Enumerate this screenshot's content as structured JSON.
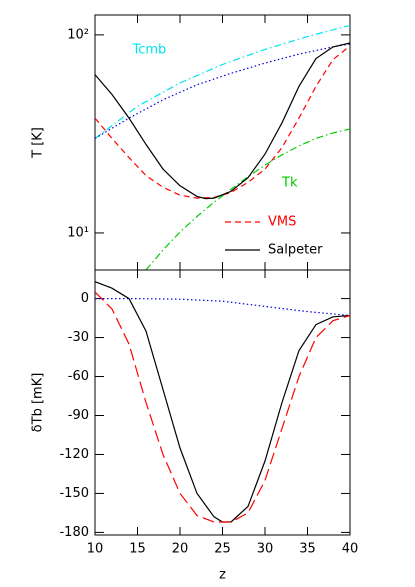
{
  "chart_data": [
    {
      "type": "line",
      "log_y": true,
      "ylabel": "T [K]",
      "xlim": [
        10,
        40
      ],
      "xticks": [
        10,
        15,
        20,
        25,
        30,
        35,
        40
      ],
      "ylim": [
        6.5,
        126
      ],
      "yticks": [
        {
          "value": 10,
          "label": "10¹"
        },
        {
          "value": 100,
          "label": "10²"
        }
      ],
      "legend": "lower right",
      "series": [
        {
          "name": "Tcmb",
          "color": "#00e5ee",
          "dash": "dashdot",
          "legend": false,
          "x": [
            10,
            15,
            20,
            25,
            30,
            35,
            40
          ],
          "values": [
            29.98,
            43.6,
            57.2,
            70.9,
            84.5,
            98.1,
            111.7
          ]
        },
        {
          "color": "#0000dd",
          "dash": "dotted",
          "legend": false,
          "x": [
            10,
            14,
            18,
            22,
            26,
            30,
            34,
            38,
            40
          ],
          "values": [
            30,
            38,
            47,
            56,
            64,
            72,
            80,
            87,
            90
          ]
        },
        {
          "name": "Tk",
          "color": "#00cc00",
          "dash": "dashdot",
          "legend": false,
          "x": [
            16,
            18,
            20,
            22,
            24,
            26,
            28,
            30,
            32,
            34,
            36,
            38,
            40
          ],
          "values": [
            6.5,
            8.2,
            10.1,
            12.1,
            14.3,
            16.6,
            19.2,
            22,
            24.8,
            27.5,
            30,
            32,
            33.5
          ]
        },
        {
          "name": "VMS",
          "color": "#ff0000",
          "dash": "dashed",
          "legend": true,
          "x": [
            10,
            12,
            14,
            16,
            18,
            20,
            22,
            24,
            26,
            28,
            30,
            32,
            34,
            36,
            38,
            40
          ],
          "values": [
            38,
            30,
            24,
            19.5,
            17,
            15.5,
            15,
            15.1,
            16,
            18,
            21,
            27,
            38,
            55,
            75,
            88
          ]
        },
        {
          "name": "Salpeter",
          "color": "#000000",
          "dash": "solid",
          "legend": true,
          "x": [
            10,
            12,
            14,
            16,
            18,
            20,
            22,
            23,
            24,
            26,
            28,
            30,
            32,
            34,
            36,
            38,
            40
          ],
          "values": [
            63,
            50,
            38,
            28,
            21,
            17.3,
            15.3,
            14.9,
            15,
            16.2,
            19,
            25,
            36,
            55,
            76,
            87,
            91
          ]
        }
      ]
    },
    {
      "type": "line",
      "xlabel": "z",
      "ylabel": "δTb [mK]",
      "xlim": [
        10,
        40
      ],
      "xticks": [
        10,
        15,
        20,
        25,
        30,
        35,
        40
      ],
      "ylim": [
        -182,
        22
      ],
      "yticks": [
        0,
        -30,
        -60,
        -90,
        -120,
        -150,
        -180
      ],
      "series": [
        {
          "color": "#0000dd",
          "dash": "dotted",
          "x": [
            10,
            15,
            20,
            25,
            30,
            35,
            40
          ],
          "values": [
            0,
            0,
            -0.5,
            -2,
            -6,
            -10,
            -13
          ]
        },
        {
          "color": "#000000",
          "dash": "solid",
          "x": [
            10,
            12,
            14,
            16,
            18,
            20,
            22,
            24,
            25,
            26,
            28,
            30,
            32,
            34,
            36,
            38,
            40
          ],
          "values": [
            13,
            8,
            0,
            -25,
            -70,
            -115,
            -150,
            -168,
            -172,
            -172,
            -160,
            -125,
            -80,
            -40,
            -20,
            -14,
            -13
          ]
        },
        {
          "color": "#ff0000",
          "dash": "longdash",
          "x": [
            10,
            12,
            14,
            16,
            18,
            20,
            22,
            24,
            26,
            28,
            30,
            32,
            34,
            36,
            38,
            40
          ],
          "values": [
            5,
            -8,
            -35,
            -80,
            -120,
            -150,
            -167,
            -172,
            -172,
            -165,
            -140,
            -100,
            -60,
            -30,
            -17,
            -13
          ]
        }
      ]
    }
  ]
}
